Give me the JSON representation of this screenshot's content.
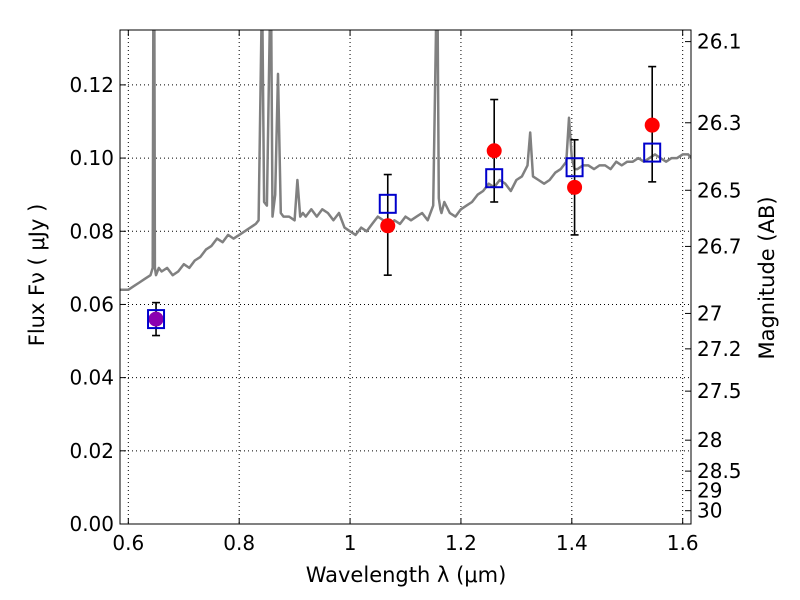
{
  "chart_data": {
    "type": "line",
    "title": "",
    "xlabel": "Wavelength  λ (μm)",
    "ylabel": "Flux  Fν  ( μJy )",
    "y2label": "Magnitude (AB)",
    "xlim": [
      0.585,
      1.615
    ],
    "ylim": [
      0.0,
      0.135
    ],
    "grid": true,
    "x_ticks": [
      0.6,
      0.8,
      1.0,
      1.2,
      1.4,
      1.6
    ],
    "x_tick_labels": [
      "0.6",
      "0.8",
      "1",
      "1.2",
      "1.4",
      "1.6"
    ],
    "y_ticks": [
      0.0,
      0.02,
      0.04,
      0.06,
      0.08,
      0.1,
      0.12
    ],
    "y_tick_labels": [
      "0.00",
      "0.02",
      "0.04",
      "0.06",
      "0.08",
      "0.10",
      "0.12"
    ],
    "y2_ticks": [
      26.1,
      26.3,
      26.5,
      26.7,
      27,
      27.2,
      27.5,
      28,
      28.5,
      29,
      30
    ],
    "y2_tick_labels": [
      "26.1",
      "26.3",
      "26.5",
      "26.7",
      "27",
      "27.2",
      "27.5",
      "28",
      "28.5",
      "29",
      "30"
    ],
    "colors": {
      "spectrum": "#808080",
      "observed": "#ff0000",
      "model": "#0000cc",
      "errorbar": "#000000",
      "overlap": "#8b00b0"
    },
    "series": [
      {
        "kind": "spectrum",
        "x": [
          0.585,
          0.6,
          0.61,
          0.62,
          0.63,
          0.64,
          0.644,
          0.645,
          0.647,
          0.648,
          0.65,
          0.655,
          0.66,
          0.67,
          0.68,
          0.69,
          0.7,
          0.71,
          0.72,
          0.73,
          0.74,
          0.75,
          0.76,
          0.77,
          0.78,
          0.79,
          0.8,
          0.81,
          0.82,
          0.83,
          0.835,
          0.84,
          0.842,
          0.845,
          0.85,
          0.855,
          0.858,
          0.86,
          0.865,
          0.87,
          0.875,
          0.88,
          0.89,
          0.9,
          0.905,
          0.91,
          0.915,
          0.92,
          0.93,
          0.94,
          0.95,
          0.96,
          0.97,
          0.98,
          0.99,
          1.0,
          1.01,
          1.02,
          1.03,
          1.04,
          1.05,
          1.06,
          1.07,
          1.08,
          1.09,
          1.1,
          1.11,
          1.12,
          1.13,
          1.14,
          1.15,
          1.155,
          1.158,
          1.16,
          1.163,
          1.165,
          1.17,
          1.18,
          1.19,
          1.2,
          1.21,
          1.22,
          1.23,
          1.24,
          1.25,
          1.26,
          1.27,
          1.28,
          1.29,
          1.3,
          1.31,
          1.32,
          1.325,
          1.33,
          1.34,
          1.35,
          1.36,
          1.37,
          1.38,
          1.39,
          1.395,
          1.4,
          1.405,
          1.41,
          1.42,
          1.43,
          1.44,
          1.45,
          1.46,
          1.47,
          1.48,
          1.49,
          1.5,
          1.51,
          1.52,
          1.53,
          1.54,
          1.55,
          1.56,
          1.57,
          1.58,
          1.59,
          1.6,
          1.61,
          1.615
        ],
        "y": [
          0.064,
          0.064,
          0.065,
          0.066,
          0.067,
          0.068,
          0.07,
          0.135,
          0.135,
          0.07,
          0.068,
          0.07,
          0.069,
          0.07,
          0.068,
          0.069,
          0.071,
          0.07,
          0.072,
          0.073,
          0.075,
          0.076,
          0.078,
          0.077,
          0.079,
          0.078,
          0.079,
          0.08,
          0.081,
          0.082,
          0.083,
          0.135,
          0.135,
          0.088,
          0.087,
          0.135,
          0.135,
          0.084,
          0.09,
          0.123,
          0.085,
          0.084,
          0.084,
          0.083,
          0.094,
          0.084,
          0.085,
          0.084,
          0.086,
          0.084,
          0.086,
          0.085,
          0.083,
          0.085,
          0.081,
          0.08,
          0.079,
          0.081,
          0.08,
          0.082,
          0.084,
          0.083,
          0.081,
          0.083,
          0.082,
          0.084,
          0.083,
          0.084,
          0.085,
          0.083,
          0.087,
          0.135,
          0.135,
          0.089,
          0.086,
          0.085,
          0.088,
          0.085,
          0.084,
          0.086,
          0.087,
          0.088,
          0.09,
          0.091,
          0.093,
          0.092,
          0.094,
          0.093,
          0.091,
          0.094,
          0.095,
          0.098,
          0.107,
          0.095,
          0.094,
          0.093,
          0.094,
          0.096,
          0.097,
          0.099,
          0.111,
          0.1,
          0.097,
          0.097,
          0.098,
          0.098,
          0.097,
          0.098,
          0.098,
          0.097,
          0.099,
          0.098,
          0.099,
          0.099,
          0.1,
          0.099,
          0.1,
          0.101,
          0.1,
          0.099,
          0.1,
          0.1,
          0.101,
          0.101,
          0.1
        ]
      },
      {
        "kind": "observed",
        "marker": "circle",
        "x": [
          0.65,
          1.068,
          1.26,
          1.405,
          1.545
        ],
        "y": [
          0.056,
          0.0815,
          0.102,
          0.092,
          0.109
        ],
        "yerr_low": [
          0.0515,
          0.068,
          0.088,
          0.079,
          0.0935
        ],
        "yerr_high": [
          0.0605,
          0.0955,
          0.116,
          0.105,
          0.125
        ]
      },
      {
        "kind": "model",
        "marker": "square",
        "x": [
          0.65,
          1.068,
          1.26,
          1.405,
          1.545
        ],
        "y": [
          0.056,
          0.0875,
          0.0945,
          0.0975,
          0.1015
        ]
      }
    ]
  }
}
